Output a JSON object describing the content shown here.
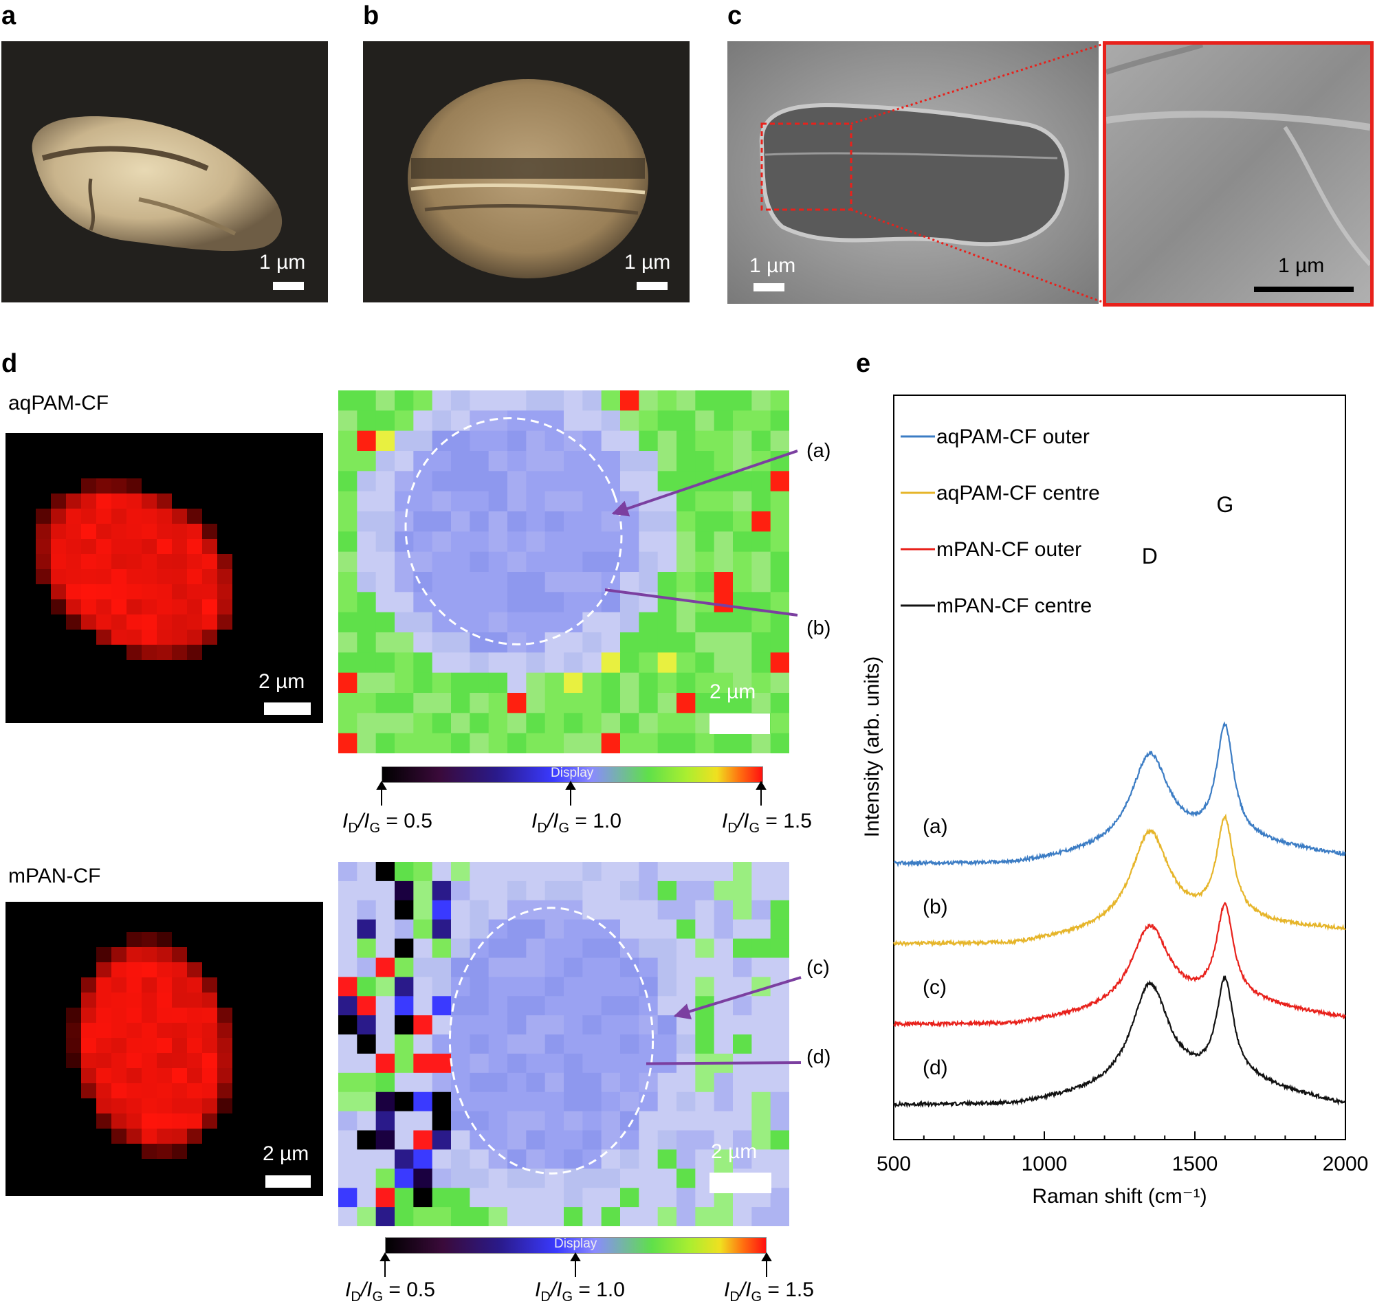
{
  "panels": {
    "a": {
      "letter": "a",
      "scale": "1 µm"
    },
    "b": {
      "letter": "b",
      "scale": "1 µm"
    },
    "c": {
      "letter": "c",
      "scale": "1 µm",
      "zoom_scale": "1 µm"
    },
    "d": {
      "letter": "d"
    },
    "e": {
      "letter": "e"
    }
  },
  "panel_d": {
    "top": {
      "sample": "aqPAM-CF",
      "scale_left": "2 µm",
      "scale_map": "2 µm",
      "annotations": [
        "(a)",
        "(b)"
      ],
      "colorbar_text": "Display",
      "colorbar_labels": [
        {
          "base": "I",
          "sub1": "D",
          "mid": "/I",
          "sub2": "G",
          "val": " = 0.5"
        },
        {
          "base": "I",
          "sub1": "D",
          "mid": "/I",
          "sub2": "G",
          "val": " = 1.0"
        },
        {
          "base": "I",
          "sub1": "D",
          "mid": "/I",
          "sub2": "G",
          "val": " = 1.5"
        }
      ]
    },
    "bottom": {
      "sample": "mPAN-CF",
      "scale_left": "2 µm",
      "scale_map": "2 µm",
      "annotations": [
        "(c)",
        "(d)"
      ],
      "colorbar_text": "Display",
      "colorbar_labels": [
        {
          "base": "I",
          "sub1": "D",
          "mid": "/I",
          "sub2": "G",
          "val": " = 0.5"
        },
        {
          "base": "I",
          "sub1": "D",
          "mid": "/I",
          "sub2": "G",
          "val": " = 1.0"
        },
        {
          "base": "I",
          "sub1": "D",
          "mid": "/I",
          "sub2": "G",
          "val": " = 1.5"
        }
      ]
    }
  },
  "colors": {
    "aq_outer": "#3b7cc4",
    "aq_centre": "#e6b52a",
    "m_outer": "#e8211b",
    "m_centre": "#111111",
    "arrow": "#7b3fa0",
    "zoom_box": "#e8211b"
  },
  "chart_data": {
    "type": "line",
    "xlabel": "Raman shift (cm⁻¹)",
    "ylabel": "Intensity (arb. units)",
    "xlim": [
      500,
      2000
    ],
    "xticks": [
      500,
      1000,
      1500,
      2000
    ],
    "ytick_labels": false,
    "grid": false,
    "legend_position": "top-left",
    "peak_labels": [
      {
        "text": "D",
        "x": 1350
      },
      {
        "text": "G",
        "x": 1600
      }
    ],
    "series": [
      {
        "name": "aqPAM-CF outer",
        "label": "(a)",
        "color": "#3b7cc4",
        "offset": 3.0,
        "baseline": 0.0,
        "d_peak": 1.6,
        "g_peak": 2.2,
        "end": 0.55
      },
      {
        "name": "aqPAM-CF centre",
        "label": "(b)",
        "color": "#e6b52a",
        "offset": 2.0,
        "baseline": 0.0,
        "d_peak": 1.65,
        "g_peak": 1.95,
        "end": 1.0
      },
      {
        "name": "mPAN-CF outer",
        "label": "(c)",
        "color": "#e8211b",
        "offset": 1.0,
        "baseline": 0.0,
        "d_peak": 1.4,
        "g_peak": 1.85,
        "end": 0.45
      },
      {
        "name": "mPAN-CF centre",
        "label": "(d)",
        "color": "#111111",
        "offset": 0.0,
        "baseline": 0.0,
        "d_peak": 1.8,
        "g_peak": 1.95,
        "end": 0.0
      }
    ]
  }
}
